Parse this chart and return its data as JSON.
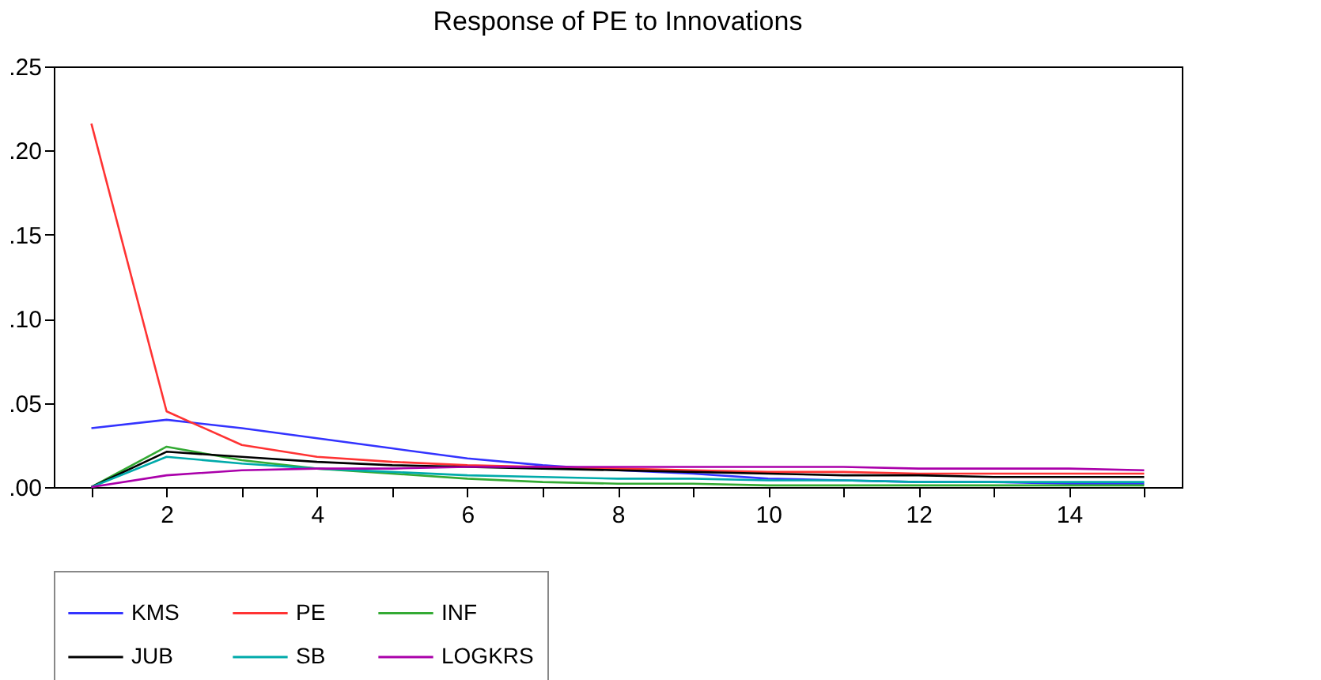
{
  "chart_data": {
    "type": "line",
    "title": "Response of PE to Innovations",
    "x": [
      1,
      2,
      3,
      4,
      5,
      6,
      7,
      8,
      9,
      10,
      11,
      12,
      13,
      14,
      15
    ],
    "xlim": [
      0.5,
      15.5
    ],
    "xticks": [
      {
        "value": 1,
        "label": null
      },
      2,
      {
        "value": 3,
        "label": null
      },
      4,
      {
        "value": 5,
        "label": null
      },
      6,
      {
        "value": 7,
        "label": null
      },
      8,
      {
        "value": 9,
        "label": null
      },
      10,
      {
        "value": 11,
        "label": null
      },
      12,
      {
        "value": 13,
        "label": null
      },
      14,
      {
        "value": 15,
        "label": null
      }
    ],
    "ylim": [
      0,
      0.25
    ],
    "yticks": [
      {
        "value": 0,
        "label": ".00"
      },
      {
        "value": 0.05,
        "label": ".05"
      },
      {
        "value": 0.1,
        "label": ".10"
      },
      {
        "value": 0.15,
        "label": ".15"
      },
      {
        "value": 0.2,
        "label": ".20"
      },
      {
        "value": 0.25,
        "label": ".25"
      }
    ],
    "grid": false,
    "legend": "bottom",
    "marker": "none",
    "line_style": "solid",
    "series": [
      {
        "name": "KMS",
        "color": "#3333ff",
        "values": [
          0.035,
          0.04,
          0.035,
          0.029,
          0.023,
          0.017,
          0.013,
          0.01,
          0.008,
          0.005,
          0.004,
          0.003,
          0.003,
          0.002,
          0.002
        ]
      },
      {
        "name": "PE",
        "color": "#ff3333",
        "values": [
          0.216,
          0.045,
          0.025,
          0.018,
          0.015,
          0.013,
          0.012,
          0.011,
          0.01,
          0.009,
          0.009,
          0.008,
          0.008,
          0.008,
          0.008
        ]
      },
      {
        "name": "INF",
        "color": "#33aa33",
        "values": [
          0,
          0.024,
          0.016,
          0.011,
          0.008,
          0.005,
          0.003,
          0.002,
          0.002,
          0.001,
          0.001,
          0.001,
          0.001,
          0.001,
          0.001
        ]
      },
      {
        "name": "JUB",
        "color": "#000000",
        "values": [
          0,
          0.021,
          0.018,
          0.015,
          0.013,
          0.012,
          0.011,
          0.01,
          0.009,
          0.008,
          0.007,
          0.007,
          0.006,
          0.006,
          0.006
        ]
      },
      {
        "name": "SB",
        "color": "#00aaaa",
        "values": [
          0,
          0.018,
          0.014,
          0.011,
          0.009,
          0.007,
          0.006,
          0.005,
          0.005,
          0.004,
          0.004,
          0.003,
          0.003,
          0.003,
          0.003
        ]
      },
      {
        "name": "LOGKRS",
        "color": "#aa00aa",
        "values": [
          0,
          0.007,
          0.01,
          0.011,
          0.011,
          0.012,
          0.012,
          0.012,
          0.012,
          0.012,
          0.012,
          0.011,
          0.011,
          0.011,
          0.01
        ]
      }
    ]
  }
}
